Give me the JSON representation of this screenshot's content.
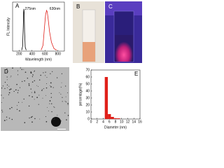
{
  "chart_data": [
    {
      "type": "line",
      "panel_label": "A",
      "x_label": "Wavelength (nm)",
      "y_label": "FL Intensity",
      "xlim": [
        100,
        900
      ],
      "ylim": [
        0,
        1
      ],
      "xticks": [
        200,
        400,
        600,
        800
      ],
      "series": [
        {
          "color": "#000000",
          "x": [
            240,
            255,
            265,
            270,
            275,
            280,
            285,
            295,
            310
          ],
          "values": [
            0.02,
            0.1,
            0.5,
            0.8,
            0.86,
            0.75,
            0.4,
            0.08,
            0.02
          ]
        },
        {
          "color": "#e0201a",
          "x": [
            540,
            570,
            590,
            610,
            625,
            635,
            650,
            670,
            700,
            740,
            780
          ],
          "values": [
            0.02,
            0.12,
            0.45,
            0.75,
            0.83,
            0.8,
            0.65,
            0.4,
            0.18,
            0.05,
            0.02
          ]
        }
      ],
      "annotations": [
        {
          "text": "275nm",
          "x": 280,
          "y": 0.86
        },
        {
          "text": "630nm",
          "x": 660,
          "y": 0.86
        }
      ]
    },
    {
      "type": "histogram",
      "panel_label": "E",
      "x_label": "Diameter (nm)",
      "y_label": "percentage(%)",
      "xlim": [
        0,
        16
      ],
      "ylim": [
        0,
        70
      ],
      "xticks": [
        0,
        2,
        4,
        6,
        8,
        10,
        12,
        14,
        16
      ],
      "yticks": [
        0,
        10,
        20,
        30,
        40,
        50,
        60,
        70
      ],
      "color": "#e0201a",
      "bins": [
        4.5,
        5.5,
        6.5,
        7.5,
        8.5,
        9.5
      ],
      "counts": [
        60,
        7,
        3,
        1,
        1
      ]
    }
  ],
  "panels": [
    "B",
    "C",
    "D"
  ]
}
